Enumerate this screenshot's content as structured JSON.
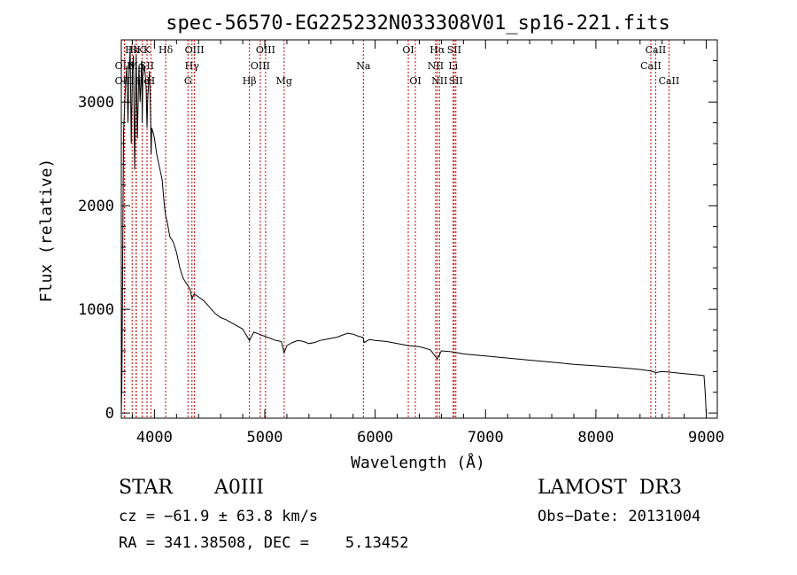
{
  "chart_data": {
    "type": "line",
    "title": "spec-56570-EG225232N033308V01_sp16-221.fits",
    "xlabel": "Wavelength (Å)",
    "ylabel": "Flux (relative)",
    "xlim": [
      3700,
      9100
    ],
    "ylim": [
      -50,
      3600
    ],
    "xticks": [
      4000,
      5000,
      6000,
      7000,
      8000,
      9000
    ],
    "xtick_labels": [
      "4000",
      "5000",
      "6000",
      "7000",
      "8000",
      "9000"
    ],
    "yticks": [
      0,
      1000,
      2000,
      3000
    ],
    "ytick_labels": [
      "0",
      "1000",
      "2000",
      "3000"
    ],
    "grid": false,
    "series": [
      {
        "x": [
          3700,
          3705,
          3720,
          3735,
          3750,
          3760,
          3770,
          3780,
          3790,
          3800,
          3810,
          3820,
          3830,
          3835,
          3845,
          3860,
          3870,
          3885,
          3889,
          3895,
          3910,
          3925,
          3933,
          3940,
          3955,
          3965,
          3970,
          3975,
          3990,
          4000,
          4020,
          4050,
          4070,
          4090,
          4102,
          4115,
          4140,
          4170,
          4200,
          4230,
          4260,
          4290,
          4320,
          4340,
          4360,
          4400,
          4450,
          4500,
          4550,
          4600,
          4650,
          4700,
          4750,
          4800,
          4861,
          4900,
          4950,
          5000,
          5050,
          5100,
          5150,
          5175,
          5200,
          5250,
          5300,
          5350,
          5400,
          5450,
          5500,
          5550,
          5600,
          5650,
          5700,
          5750,
          5800,
          5850,
          5890,
          5900,
          5950,
          6000,
          6100,
          6200,
          6300,
          6400,
          6500,
          6563,
          6600,
          6700,
          6800,
          7000,
          7200,
          7400,
          7600,
          7800,
          8000,
          8200,
          8400,
          8498,
          8542,
          8600,
          8662,
          8700,
          8800,
          8900,
          8980,
          8990,
          9000
        ],
        "y": [
          0,
          250,
          2700,
          3100,
          3350,
          2800,
          3300,
          3500,
          2600,
          3300,
          3450,
          2350,
          3150,
          3450,
          2650,
          3350,
          3000,
          3400,
          2800,
          3250,
          3350,
          3150,
          2750,
          3050,
          3300,
          2900,
          2500,
          2750,
          2700,
          2650,
          2500,
          2350,
          2250,
          2000,
          1900,
          1850,
          1700,
          1650,
          1550,
          1400,
          1300,
          1250,
          1200,
          1100,
          1150,
          1120,
          1080,
          1020,
          960,
          920,
          900,
          870,
          840,
          810,
          700,
          780,
          760,
          740,
          720,
          700,
          690,
          580,
          650,
          680,
          700,
          690,
          670,
          680,
          700,
          710,
          720,
          730,
          750,
          770,
          760,
          740,
          730,
          680,
          710,
          700,
          690,
          670,
          650,
          640,
          610,
          520,
          600,
          590,
          570,
          550,
          530,
          510,
          490,
          470,
          455,
          440,
          420,
          405,
          390,
          400,
          395,
          390,
          380,
          370,
          360,
          200,
          0
        ]
      }
    ],
    "lines": [
      {
        "label": "Hk",
        "x": 3798,
        "row": 0
      },
      {
        "label": "HK",
        "x": 3835,
        "row": 0
      },
      {
        "label": "OIII",
        "x": 3729,
        "row": 1
      },
      {
        "label": "OIII",
        "x": 3729,
        "row": 2
      },
      {
        "label": "He",
        "x": 3889,
        "row": 2
      },
      {
        "label": "Mg",
        "x": 3835,
        "row": 1
      },
      {
        "label": "SII",
        "x": 3933,
        "row": 1
      },
      {
        "label": "K",
        "x": 3933,
        "row": 0
      },
      {
        "label": "H",
        "x": 3968,
        "row": 2
      },
      {
        "label": "Hδ",
        "x": 4102,
        "row": 0
      },
      {
        "label": "OIII",
        "x": 4363,
        "row": 0
      },
      {
        "label": "Hγ",
        "x": 4340,
        "row": 1
      },
      {
        "label": "G",
        "x": 4304,
        "row": 2
      },
      {
        "label": "OIII",
        "x": 5007,
        "row": 0
      },
      {
        "label": "OIII",
        "x": 4959,
        "row": 1
      },
      {
        "label": "Hβ",
        "x": 4861,
        "row": 2
      },
      {
        "label": "Mg",
        "x": 5175,
        "row": 2
      },
      {
        "label": "Na",
        "x": 5893,
        "row": 1
      },
      {
        "label": "OI",
        "x": 6300,
        "row": 0
      },
      {
        "label": "OI",
        "x": 6364,
        "row": 2
      },
      {
        "label": "Hα",
        "x": 6563,
        "row": 0
      },
      {
        "label": "SII",
        "x": 6716,
        "row": 0
      },
      {
        "label": "NII",
        "x": 6548,
        "row": 1
      },
      {
        "label": "Li",
        "x": 6707,
        "row": 1
      },
      {
        "label": "NII",
        "x": 6583,
        "row": 2
      },
      {
        "label": "SII",
        "x": 6731,
        "row": 2
      },
      {
        "label": "CaII",
        "x": 8542,
        "row": 0
      },
      {
        "label": "CaII",
        "x": 8498,
        "row": 1
      },
      {
        "label": "CaII",
        "x": 8662,
        "row": 2
      }
    ],
    "line_colors": {
      "spectrum": "#000000",
      "markers": "#cc0000"
    }
  },
  "info": {
    "class": "STAR",
    "subclass": "A0III",
    "survey": "LAMOST  DR3",
    "cz": "cz = −61.9 ± 63.8 km/s",
    "obs_date": "Obs−Date: 20131004",
    "radec": "RA = 341.38508, DEC =    5.13452"
  }
}
